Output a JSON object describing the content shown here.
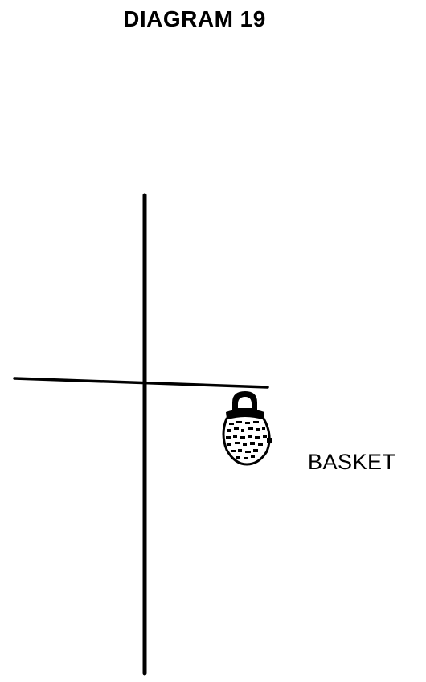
{
  "title": "DIAGRAM 19",
  "labels": {
    "basket": "BASKET"
  },
  "colors": {
    "ink": "#000000",
    "paper": "#ffffff"
  },
  "icons": {
    "basket": "basket-icon"
  }
}
